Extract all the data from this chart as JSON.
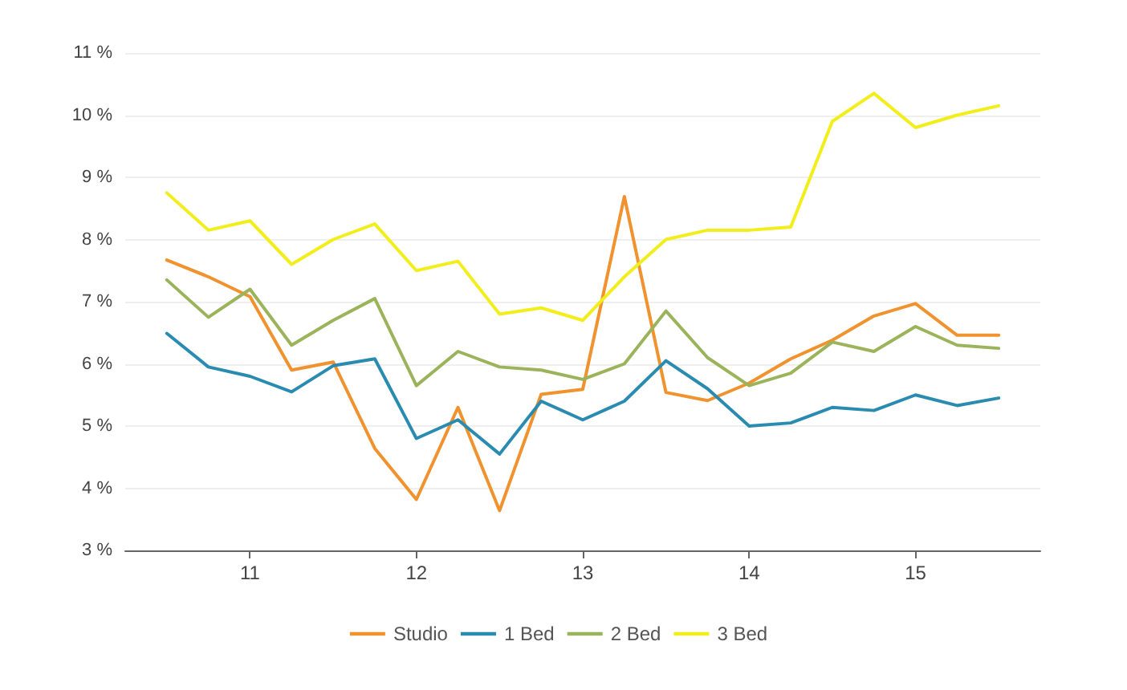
{
  "chart_data": {
    "type": "line",
    "x": [
      10.5,
      10.75,
      11,
      11.25,
      11.5,
      11.75,
      12,
      12.25,
      12.5,
      12.75,
      13,
      13.25,
      13.5,
      13.75,
      14,
      14.25,
      14.5,
      14.75,
      15,
      15.25,
      15.5
    ],
    "xlim": [
      10.25,
      15.75
    ],
    "xticks": [
      11,
      12,
      13,
      14,
      15
    ],
    "ylim": [
      3,
      11
    ],
    "yticks": [
      {
        "value": 3,
        "label": "3 %"
      },
      {
        "value": 4,
        "label": "4 %"
      },
      {
        "value": 5,
        "label": "5 %"
      },
      {
        "value": 6,
        "label": "6 %"
      },
      {
        "value": 7,
        "label": "7 %"
      },
      {
        "value": 8,
        "label": "8 %"
      },
      {
        "value": 9,
        "label": "9 %"
      },
      {
        "value": 10,
        "label": "10 %"
      },
      {
        "value": 11,
        "label": "11 %"
      }
    ],
    "series": [
      {
        "name": "Studio",
        "color": "#f0922e",
        "values": [
          7.67,
          7.4,
          7.08,
          5.9,
          6.03,
          4.64,
          3.82,
          5.3,
          3.64,
          5.51,
          5.59,
          8.69,
          5.54,
          5.41,
          5.69,
          6.08,
          6.38,
          6.77,
          6.97,
          6.46,
          6.46
        ]
      },
      {
        "name": "1 Bed",
        "color": "#2a8bb0",
        "values": [
          6.49,
          5.95,
          5.8,
          5.55,
          5.97,
          6.08,
          4.8,
          5.1,
          4.55,
          5.4,
          5.1,
          5.4,
          6.05,
          5.6,
          5.0,
          5.05,
          5.3,
          5.25,
          5.5,
          5.33,
          5.45
        ]
      },
      {
        "name": "2 Bed",
        "color": "#9bb35a",
        "values": [
          7.35,
          6.75,
          7.2,
          6.3,
          6.7,
          7.05,
          5.65,
          6.2,
          5.95,
          5.9,
          5.75,
          6.0,
          6.85,
          6.1,
          5.65,
          5.85,
          6.35,
          6.2,
          6.6,
          6.3,
          6.25
        ]
      },
      {
        "name": "3 Bed",
        "color": "#f2ee1c",
        "values": [
          8.75,
          8.15,
          8.3,
          7.6,
          8.0,
          8.25,
          7.5,
          7.65,
          6.8,
          6.9,
          6.7,
          7.4,
          8.0,
          8.15,
          8.15,
          8.2,
          9.9,
          10.35,
          9.8,
          10.0,
          10.15
        ]
      }
    ],
    "grid": "y",
    "legend": "bottom",
    "marker": "none",
    "line_style": "solid"
  }
}
